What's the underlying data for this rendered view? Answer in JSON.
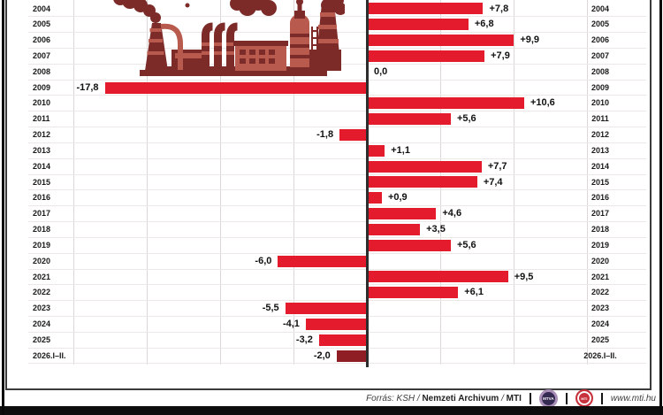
{
  "chart_data": {
    "type": "bar",
    "orientation": "horizontal",
    "title": "",
    "xlabel": "",
    "ylabel": "",
    "xlim": [
      -20,
      15
    ],
    "gridline_step": 5,
    "grid": true,
    "legend": "none",
    "categories": [
      "2004",
      "2005",
      "2006",
      "2007",
      "2008",
      "2009",
      "2010",
      "2011",
      "2012",
      "2013",
      "2014",
      "2015",
      "2016",
      "2017",
      "2018",
      "2019",
      "2020",
      "2021",
      "2022",
      "2023",
      "2024",
      "2025",
      "2026.I–II."
    ],
    "values": [
      7.8,
      6.8,
      9.9,
      7.9,
      0.0,
      -17.8,
      10.6,
      5.6,
      -1.8,
      1.1,
      7.7,
      7.4,
      0.9,
      4.6,
      3.5,
      5.6,
      -6.0,
      9.5,
      6.1,
      -5.5,
      -4.1,
      -3.2,
      -2.0
    ],
    "value_labels": [
      "+7,8",
      "+6,8",
      "+9,9",
      "+7,9",
      "0,0",
      "-17,8",
      "+10,6",
      "+5,6",
      "-1,8",
      "+1,1",
      "+7,7",
      "+7,4",
      "+0,9",
      "+4,6",
      "+3,5",
      "+5,6",
      "-6,0",
      "+9,5",
      "+6,1",
      "-5,5",
      "-4,1",
      "-3,2",
      "-2,0"
    ],
    "bar_color": "#e41b2c",
    "last_bar_color": "#8f1d24",
    "axis_color": "#2d2d2d",
    "illustration": "factory-with-smoking-chimneys"
  },
  "footer": {
    "source_italic": "Forrás: KSH /",
    "source_bold1": "Nemzeti Archivum",
    "source_slash": "/",
    "source_bold2": "MTI",
    "separator": "|",
    "logos": [
      {
        "name": "mtva-logo",
        "text": "MTVA"
      },
      {
        "name": "mti-logo",
        "text": "MTI"
      }
    ],
    "website": "www.mti.hu"
  }
}
